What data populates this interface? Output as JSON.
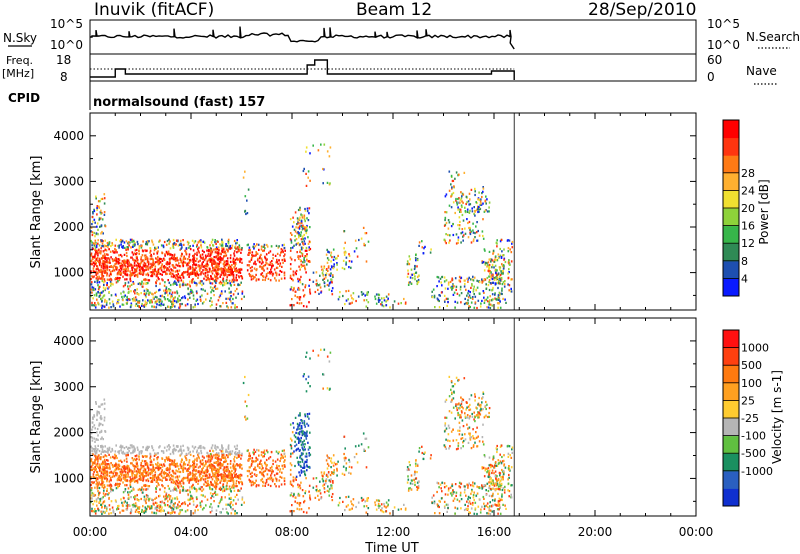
{
  "header": {
    "station": "Inuvik (fitACF)",
    "beam": "Beam 12",
    "date": "28/Sep/2010"
  },
  "strip_panels": {
    "nsky": {
      "left_label": "N.Sky",
      "left_ticks": [
        "10^5",
        "10^0"
      ],
      "right_ticks": [
        "10^5",
        "10^0"
      ],
      "right_label": "N.Search"
    },
    "freq": {
      "left_label_1": "Freq.",
      "left_label_2": "[MHz]",
      "left_ticks": [
        "18",
        "8"
      ],
      "right_ticks": [
        "60",
        "0"
      ],
      "right_label": "Nave"
    },
    "cpid": {
      "left_label": "CPID",
      "text": "normalsound (fast) 157"
    }
  },
  "chart_data": [
    {
      "type": "heatmap",
      "name": "Power",
      "ylabel": "Slant Range [km]",
      "yticks": [
        1000,
        2000,
        3000,
        4000
      ],
      "ylim": [
        180,
        4500
      ],
      "xlim": [
        0,
        24
      ],
      "colorbar": {
        "label": "Power [dB]",
        "ticks": [
          "4",
          "8",
          "12",
          "16",
          "20",
          "24",
          "28"
        ],
        "colors": [
          "#0a1aff",
          "#1e4fb0",
          "#2f8a55",
          "#37b64a",
          "#8ed23a",
          "#f0e030",
          "#ffb030",
          "#ff7a15",
          "#ff3510",
          "#ff0000"
        ]
      }
    },
    {
      "type": "heatmap",
      "name": "Velocity",
      "ylabel": "Slant Range [km]",
      "yticks": [
        1000,
        2000,
        3000,
        4000
      ],
      "ylim": [
        180,
        4500
      ],
      "xlim": [
        0,
        24
      ],
      "colorbar": {
        "label": "Velocity [m s-1]",
        "ticks": [
          "1000",
          "500",
          "100",
          "25",
          "-25",
          "-100",
          "-500",
          "-1000"
        ],
        "colors": [
          "#1030d0",
          "#2a5fc0",
          "#1a9060",
          "#60c040",
          "#b5b5b5",
          "#ffcc30",
          "#ffa020",
          "#ff7a10",
          "#ff4010",
          "#ff1010"
        ]
      }
    }
  ],
  "x_axis": {
    "label": "Time UT",
    "ticks": [
      "00:00",
      "04:00",
      "08:00",
      "12:00",
      "16:00",
      "20:00",
      "00:00"
    ]
  },
  "data_coverage_hours": [
    0,
    16.8
  ]
}
